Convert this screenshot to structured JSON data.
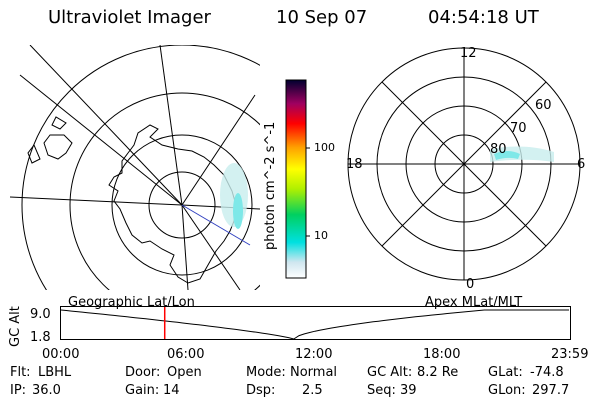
{
  "header": {
    "instrument": "Ultraviolet Imager",
    "date": "10 Sep 07",
    "time": "04:54:18 UT"
  },
  "colorbar": {
    "unit_label": "photon cm^-2 s^-1",
    "ticks": [
      "100",
      "10"
    ],
    "scale": "log"
  },
  "polar_plot": {
    "lat_labels": [
      "60",
      "70",
      "80"
    ],
    "mlt_labels": [
      "12",
      "18",
      "6",
      "0"
    ]
  },
  "timeline": {
    "left_title": "Geographic Lat/Lon",
    "right_title": "Apex MLat/MLT",
    "ylabel": "GC Alt",
    "y_ticks": [
      "9.0",
      "1.8"
    ],
    "x_ticks": [
      "00:00",
      "06:00",
      "12:00",
      "18:00",
      "23:59"
    ],
    "current_hour": 4.9,
    "min_hour": 11.0
  },
  "status": {
    "row1": [
      {
        "label": "Flt:",
        "value": "LBHL"
      },
      {
        "label": "Door:",
        "value": "Open"
      },
      {
        "label": "Mode:",
        "value": "Normal"
      },
      {
        "label": "GC Alt:",
        "value": "8.2 Re"
      },
      {
        "label": "GLat:",
        "value": "-74.8"
      }
    ],
    "row2": [
      {
        "label": "IP:",
        "value": "36.0"
      },
      {
        "label": "Gain:",
        "value": "14"
      },
      {
        "label": "Dsp:",
        "value": "2.5"
      },
      {
        "label": "Seq:",
        "value": "39"
      },
      {
        "label": "GLon:",
        "value": "297.7"
      }
    ]
  },
  "colors": {
    "marker": "#ff0000",
    "aurora": "#7ee8e8",
    "projection_line": "#3040c0"
  }
}
